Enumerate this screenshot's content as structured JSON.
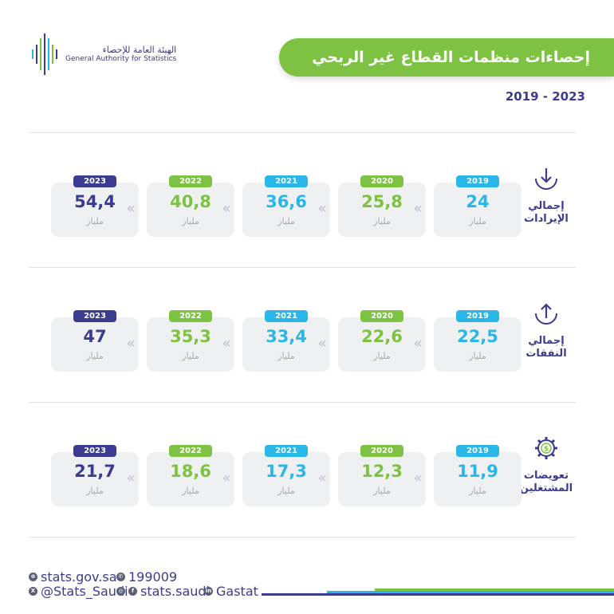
{
  "header": {
    "logo_ar": "الهيئة العامة للإحصاء",
    "logo_en": "General Authority for Statistics",
    "title": "إحصاءات منظمات القطاع غير الربحي",
    "years_range": "2019 - 2023"
  },
  "unit": "مليار",
  "colors": {
    "2019": "#29b6e8",
    "2020": "#7dc242",
    "2021": "#29b6e8",
    "2022": "#7dc242",
    "2023": "#3b3b8f",
    "title_bg": "#7dc242"
  },
  "sections": [
    {
      "label_line1": "إجمالي",
      "label_line2": "الإيرادات",
      "icon": "arrow-down-icon",
      "items": [
        {
          "year": "2023",
          "value": "54,4"
        },
        {
          "year": "2022",
          "value": "40,8"
        },
        {
          "year": "2021",
          "value": "36,6"
        },
        {
          "year": "2020",
          "value": "25,8"
        },
        {
          "year": "2019",
          "value": "24"
        }
      ]
    },
    {
      "label_line1": "إجمالي",
      "label_line2": "النفقات",
      "icon": "arrow-up-icon",
      "items": [
        {
          "year": "2023",
          "value": "47"
        },
        {
          "year": "2022",
          "value": "35,3"
        },
        {
          "year": "2021",
          "value": "33,4"
        },
        {
          "year": "2020",
          "value": "22,6"
        },
        {
          "year": "2019",
          "value": "22,5"
        }
      ]
    },
    {
      "label_line1": "تعويضات",
      "label_line2": "المشتغلين",
      "icon": "gear-dollar-icon",
      "items": [
        {
          "year": "2023",
          "value": "21,7"
        },
        {
          "year": "2022",
          "value": "18,6"
        },
        {
          "year": "2021",
          "value": "17,3"
        },
        {
          "year": "2020",
          "value": "12,3"
        },
        {
          "year": "2019",
          "value": "11,9"
        }
      ]
    }
  ],
  "footer": {
    "website": "stats.gov.sa",
    "phone": "199009",
    "twitter": "@Stats_Saudi",
    "social": "stats.saudi",
    "linkedin": "Gastat"
  }
}
